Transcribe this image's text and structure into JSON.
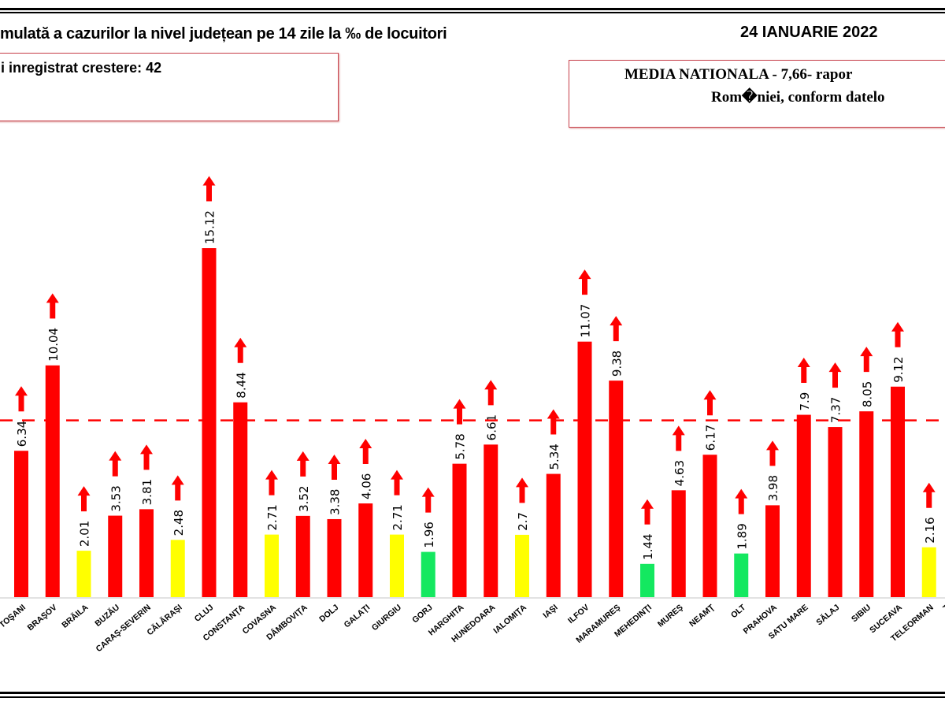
{
  "header": {
    "title": "mulată a cazurilor la nivel județean pe 14 zile la ‰ de locuitori",
    "date": "24 IANUARIE 2022"
  },
  "info_left": "i inregistrat crestere: 42",
  "info_right": {
    "line1": "MEDIA NATIONALA - 7,66-  rapor",
    "line2": "Rom�niei, conform datelo"
  },
  "chart_data": {
    "type": "bar",
    "categories": [
      "TOŞANI",
      "BRAŞOV",
      "BRĂILA",
      "BUZĂU",
      "CARAŞ-SEVERIN",
      "CĂLĂRAŞI",
      "CLUJ",
      "CONSTANŢA",
      "COVASNA",
      "DÂMBOVIŢA",
      "DOLJ",
      "GALAŢI",
      "GIURGIU",
      "GORJ",
      "HARGHITA",
      "HUNEDOARA",
      "IALOMIŢA",
      "IAŞI",
      "ILFOV",
      "MARAMUREŞ",
      "MEHEDINŢI",
      "MUREŞ",
      "NEAMŢ",
      "OLT",
      "PRAHOVA",
      "SATU MARE",
      "SĂLAJ",
      "SIBIU",
      "SUCEAVA",
      "TELEORMAN",
      "T"
    ],
    "values": [
      6.34,
      10.04,
      2.01,
      3.53,
      3.81,
      2.48,
      15.12,
      8.44,
      2.71,
      3.52,
      3.38,
      4.06,
      2.71,
      1.96,
      5.78,
      6.61,
      2.7,
      5.34,
      11.07,
      9.38,
      1.44,
      4.63,
      6.17,
      1.89,
      3.98,
      7.9,
      7.37,
      8.05,
      9.12,
      2.16,
      null
    ],
    "value_labels": [
      "6.34",
      "10.04",
      "2.01",
      "3.53",
      "3.81",
      "2.48",
      "15.12",
      "8.44",
      "2.71",
      "3.52",
      "3.38",
      "4.06",
      "2.71",
      "1.96",
      "5.78",
      "6.61",
      "2.7",
      "5.34",
      "11.07",
      "9.38",
      "1.44",
      "4.63",
      "6.17",
      "1.89",
      "3.98",
      "7.9",
      "7.37",
      "8.05",
      "9.12",
      "2.16",
      ""
    ],
    "colors": [
      "red",
      "red",
      "yellow",
      "red",
      "red",
      "yellow",
      "red",
      "red",
      "yellow",
      "red",
      "red",
      "red",
      "yellow",
      "green",
      "red",
      "red",
      "yellow",
      "red",
      "red",
      "red",
      "green",
      "red",
      "red",
      "green",
      "red",
      "red",
      "red",
      "red",
      "red",
      "yellow",
      ""
    ],
    "trend": "up-arrow on every county",
    "reference_line": {
      "value": 7.66,
      "style": "dashed",
      "color": "#ff0000"
    },
    "ylim": [
      0,
      15.5
    ],
    "grid": false,
    "palette": {
      "red": "#ff0000",
      "yellow": "#ffff00",
      "green": "#14e860"
    }
  }
}
